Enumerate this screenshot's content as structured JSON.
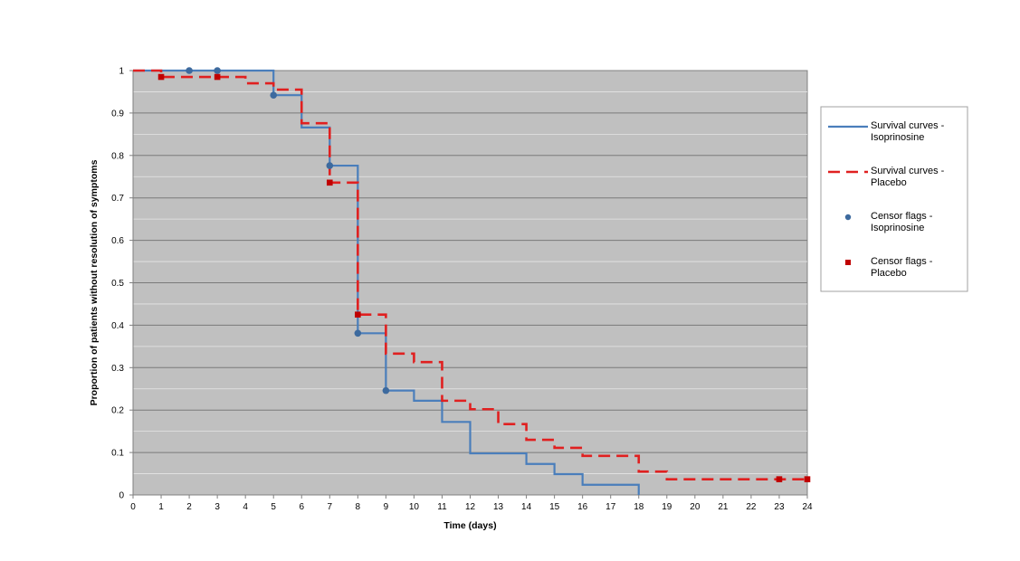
{
  "chart_data": {
    "type": "line",
    "title": "",
    "xlabel": "Time (days)",
    "ylabel": "Proportion of patients without resolution of symptoms",
    "xlim": [
      0,
      24
    ],
    "ylim": [
      0,
      1
    ],
    "x_ticks": [
      "0",
      "1",
      "2",
      "3",
      "4",
      "5",
      "6",
      "7",
      "8",
      "9",
      "10",
      "11",
      "12",
      "13",
      "14",
      "15",
      "16",
      "17",
      "18",
      "19",
      "20",
      "21",
      "22",
      "23",
      "24"
    ],
    "y_ticks": [
      "0",
      "0.1",
      "0.2",
      "0.3",
      "0.4",
      "0.5",
      "0.6",
      "0.7",
      "0.8",
      "0.9",
      "1"
    ],
    "grid": true,
    "plot_background": "#c0c0c0",
    "legend_position": "right",
    "series": [
      {
        "name": "Survival curves - Isoprinosine",
        "name_lines": [
          "Survival curves -",
          "Isoprinosine"
        ],
        "kind": "step",
        "style": "solid",
        "color": "#4a7ebb",
        "x": [
          0,
          5,
          6,
          7,
          8,
          9,
          10,
          11,
          12,
          14,
          15,
          16,
          18
        ],
        "y": [
          1,
          0.942,
          0.866,
          0.776,
          0.381,
          0.246,
          0.222,
          0.172,
          0.098,
          0.073,
          0.049,
          0.024,
          0
        ]
      },
      {
        "name": "Survival curves - Placebo",
        "name_lines": [
          "Survival curves -",
          "Placebo"
        ],
        "kind": "step",
        "style": "dashed",
        "color": "#e02020",
        "x": [
          0,
          1,
          4,
          5,
          6,
          7,
          8,
          9,
          10,
          11,
          12,
          13,
          14,
          15,
          16,
          18,
          19,
          24
        ],
        "y": [
          1,
          0.985,
          0.97,
          0.955,
          0.876,
          0.736,
          0.425,
          0.333,
          0.313,
          0.222,
          0.202,
          0.167,
          0.13,
          0.111,
          0.092,
          0.055,
          0.037,
          0.037
        ]
      },
      {
        "name": "Censor flags - Isoprinosine",
        "name_lines": [
          "Censor flags -",
          "Isoprinosine"
        ],
        "kind": "marker",
        "marker": "circle",
        "color": "#3d6a9e",
        "x": [
          2,
          3,
          5,
          7,
          8,
          9
        ],
        "y": [
          1,
          1,
          0.942,
          0.776,
          0.381,
          0.246
        ]
      },
      {
        "name": "Censor flags - Placebo",
        "name_lines": [
          "Censor flags -",
          "Placebo"
        ],
        "kind": "marker",
        "marker": "square",
        "color": "#c00000",
        "x": [
          1,
          3,
          7,
          8,
          23,
          24
        ],
        "y": [
          0.985,
          0.985,
          0.736,
          0.425,
          0.037,
          0.037
        ]
      }
    ]
  }
}
